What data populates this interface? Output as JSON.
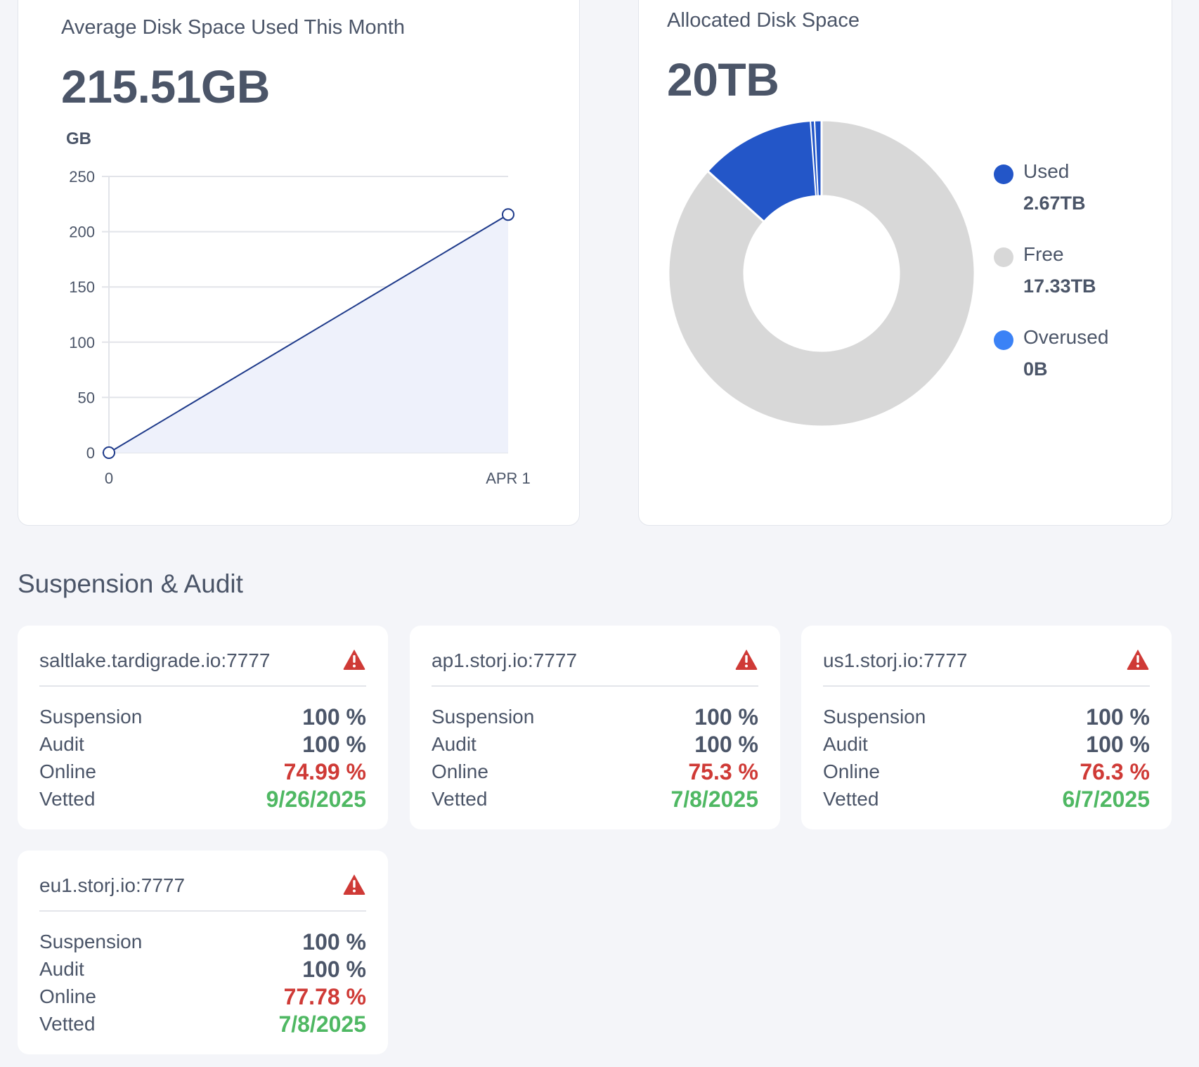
{
  "disk_space": {
    "title": "Average Disk Space Used This Month",
    "value": "215.51GB",
    "chart_data": {
      "type": "area",
      "ylabel": "GB",
      "x": [
        "0",
        "APR 1"
      ],
      "y_ticks": [
        "0",
        "50",
        "100",
        "150",
        "200",
        "250"
      ],
      "values": [
        0,
        215.51
      ],
      "ylim": [
        0,
        250
      ],
      "grid": true,
      "colors": {
        "line": "#1e3a8a",
        "fill": "#eef1fb"
      }
    }
  },
  "allocated": {
    "title": "Allocated Disk Space",
    "value": "20TB",
    "chart_data": {
      "type": "pie",
      "segments": [
        {
          "label": "Used",
          "value": 2.67,
          "display": "2.67TB",
          "color": "#2356c8"
        },
        {
          "label": "Free",
          "value": 17.33,
          "display": "17.33TB",
          "color": "#d8d8d8"
        },
        {
          "label": "Overused",
          "value": 0,
          "display": "0B",
          "color": "#3b82f6"
        }
      ],
      "legend": "right"
    }
  },
  "section_title": "Suspension & Audit",
  "satellites": [
    {
      "name": "saltlake.tardigrade.io:7777",
      "rows": [
        {
          "label": "Suspension",
          "value": "100 %",
          "status": "normal"
        },
        {
          "label": "Audit",
          "value": "100 %",
          "status": "normal"
        },
        {
          "label": "Online",
          "value": "74.99 %",
          "status": "bad"
        },
        {
          "label": "Vetted",
          "value": "9/26/2025",
          "status": "good"
        }
      ]
    },
    {
      "name": "ap1.storj.io:7777",
      "rows": [
        {
          "label": "Suspension",
          "value": "100 %",
          "status": "normal"
        },
        {
          "label": "Audit",
          "value": "100 %",
          "status": "normal"
        },
        {
          "label": "Online",
          "value": "75.3 %",
          "status": "bad"
        },
        {
          "label": "Vetted",
          "value": "7/8/2025",
          "status": "good"
        }
      ]
    },
    {
      "name": "us1.storj.io:7777",
      "rows": [
        {
          "label": "Suspension",
          "value": "100 %",
          "status": "normal"
        },
        {
          "label": "Audit",
          "value": "100 %",
          "status": "normal"
        },
        {
          "label": "Online",
          "value": "76.3 %",
          "status": "bad"
        },
        {
          "label": "Vetted",
          "value": "6/7/2025",
          "status": "good"
        }
      ]
    },
    {
      "name": "eu1.storj.io:7777",
      "rows": [
        {
          "label": "Suspension",
          "value": "100 %",
          "status": "normal"
        },
        {
          "label": "Audit",
          "value": "100 %",
          "status": "normal"
        },
        {
          "label": "Online",
          "value": "77.78 %",
          "status": "bad"
        },
        {
          "label": "Vetted",
          "value": "7/8/2025",
          "status": "good"
        }
      ]
    }
  ],
  "icons": {
    "warning": "warning-triangle-icon"
  }
}
